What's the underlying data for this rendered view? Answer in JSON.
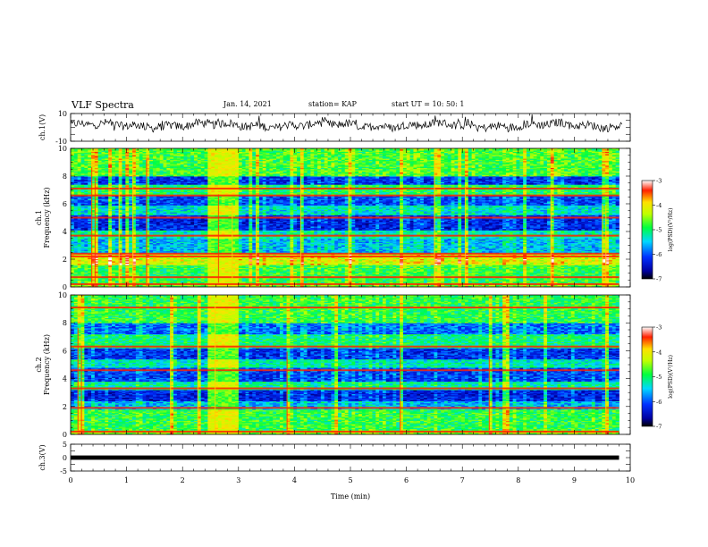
{
  "header": {
    "title": "VLF Spectra",
    "date": "Jan. 14, 2021",
    "station": "station= KAP",
    "start_ut": "start  UT =   10: 50: 1"
  },
  "chart_data": [
    {
      "type": "line",
      "name": "ch1-waveform",
      "ylabel": "ch.1(V)",
      "ylim": [
        -10,
        10
      ],
      "yticks": [
        "10",
        "-10"
      ],
      "xlim": [
        0,
        10
      ],
      "baseline": 1.5,
      "amplitude": 6
    },
    {
      "type": "heatmap",
      "name": "ch1-spectrogram",
      "ylabel": "ch.1\nFrequency  (kHz)",
      "ylim": [
        0,
        10
      ],
      "yticks": [
        "0",
        "2",
        "4",
        "6",
        "8",
        "10"
      ],
      "xlim": [
        0,
        9.8
      ],
      "colorbar": {
        "label": "log(PSD)(V²/Hz)",
        "range": [
          -7,
          -3
        ],
        "ticks": [
          "-3",
          "-4",
          "-5",
          "-6",
          "-7"
        ]
      },
      "bands_khz": [
        {
          "f0": 0.0,
          "f1": 0.3,
          "level": -4.6
        },
        {
          "f0": 0.3,
          "f1": 1.6,
          "level": -4.9
        },
        {
          "f0": 1.6,
          "f1": 2.4,
          "level": -4.2
        },
        {
          "f0": 2.4,
          "f1": 3.5,
          "level": -5.6
        },
        {
          "f0": 3.5,
          "f1": 4.1,
          "level": -5.3
        },
        {
          "f0": 4.1,
          "f1": 5.2,
          "level": -6.3
        },
        {
          "f0": 5.2,
          "f1": 5.9,
          "level": -5.4
        },
        {
          "f0": 5.9,
          "f1": 6.6,
          "level": -6.1
        },
        {
          "f0": 6.6,
          "f1": 7.4,
          "level": -5.0
        },
        {
          "f0": 7.4,
          "f1": 8.0,
          "level": -6.2
        },
        {
          "f0": 8.0,
          "f1": 10.0,
          "level": -4.8
        }
      ],
      "lines_khz": [
        0.2,
        0.7,
        2.2,
        2.4,
        3.7,
        5.0,
        6.6,
        7.1
      ],
      "event": {
        "t0": 2.4,
        "t1": 3.0,
        "level": -4.1
      }
    },
    {
      "type": "heatmap",
      "name": "ch2-spectrogram",
      "ylabel": "ch.2\nFrequency  (kHz)",
      "ylim": [
        0,
        10
      ],
      "yticks": [
        "0",
        "2",
        "4",
        "6",
        "8",
        "10"
      ],
      "xlim": [
        0,
        9.8
      ],
      "colorbar": {
        "label": "log(PSD)(V²/Hz)",
        "range": [
          -7,
          -3
        ],
        "ticks": [
          "-3",
          "-4",
          "-5",
          "-6",
          "-7"
        ]
      },
      "bands_khz": [
        {
          "f0": 0.0,
          "f1": 0.3,
          "level": -4.5
        },
        {
          "f0": 0.3,
          "f1": 1.8,
          "level": -4.9
        },
        {
          "f0": 1.8,
          "f1": 2.4,
          "level": -5.6
        },
        {
          "f0": 2.4,
          "f1": 3.2,
          "level": -6.3
        },
        {
          "f0": 3.2,
          "f1": 3.8,
          "level": -5.2
        },
        {
          "f0": 3.8,
          "f1": 4.8,
          "level": -6.1
        },
        {
          "f0": 4.8,
          "f1": 5.4,
          "level": -5.3
        },
        {
          "f0": 5.4,
          "f1": 6.2,
          "level": -6.2
        },
        {
          "f0": 6.2,
          "f1": 7.2,
          "level": -5.1
        },
        {
          "f0": 7.2,
          "f1": 8.0,
          "level": -5.9
        },
        {
          "f0": 8.0,
          "f1": 10.0,
          "level": -4.9
        }
      ],
      "lines_khz": [
        0.2,
        1.9,
        3.3,
        4.6,
        6.3,
        9.1
      ],
      "event": {
        "t0": 2.4,
        "t1": 3.0,
        "level": -4.1
      }
    },
    {
      "type": "line",
      "name": "ch3-waveform",
      "ylabel": "ch.3(V)",
      "ylim": [
        -5,
        5
      ],
      "yticks": [
        "5",
        "0",
        "-5"
      ],
      "xlim": [
        0,
        10
      ],
      "xticks": [
        "0",
        "1",
        "2",
        "3",
        "4",
        "5",
        "6",
        "7",
        "8",
        "9",
        "10"
      ],
      "xlabel": "Time  (min)",
      "baseline": 0,
      "amplitude": 0.8
    }
  ]
}
